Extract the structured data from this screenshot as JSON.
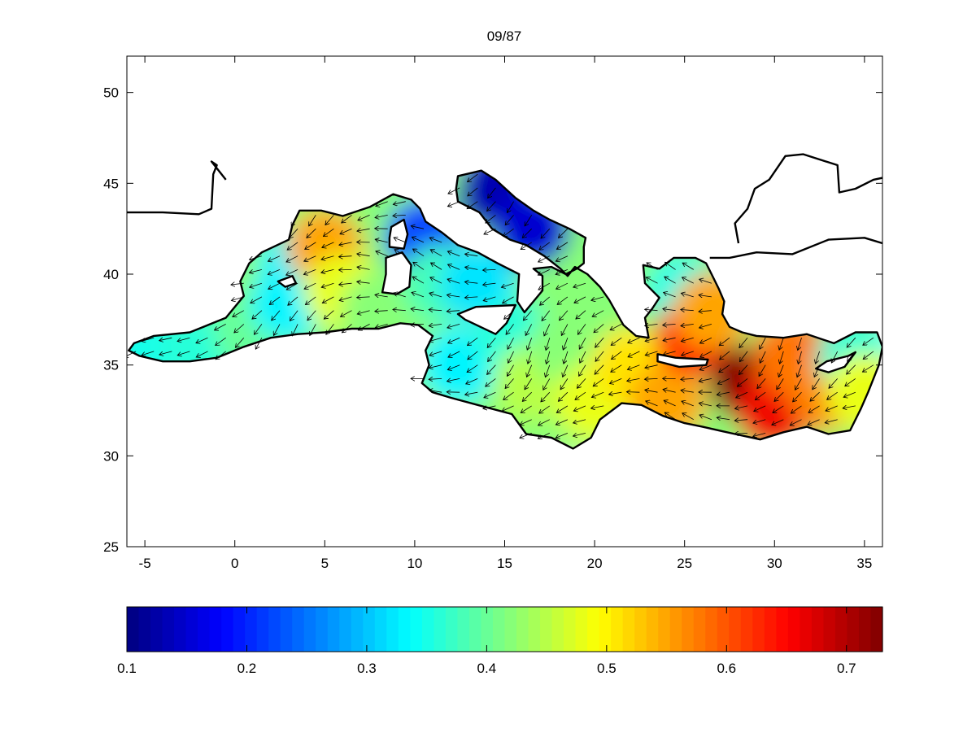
{
  "chart_data": {
    "type": "heatmap",
    "title": "09/87",
    "xlabel": "",
    "ylabel": "",
    "xlim": [
      -6,
      36
    ],
    "ylim": [
      25,
      52
    ],
    "x_ticks": [
      -5,
      0,
      5,
      10,
      15,
      20,
      25,
      30,
      35
    ],
    "y_ticks": [
      25,
      30,
      35,
      40,
      45,
      50
    ],
    "colorbar": {
      "colormap": "jet",
      "range": [
        0.1,
        0.73
      ],
      "ticks": [
        0.1,
        0.2,
        0.3,
        0.4,
        0.5,
        0.6,
        0.7
      ],
      "orientation": "horizontal",
      "placement": "bottom"
    },
    "overlay": "vector field arrows",
    "grid": false,
    "field_samples": [
      {
        "lon": -5.0,
        "lat": 35.8,
        "value": 0.35
      },
      {
        "lon": -2.0,
        "lat": 35.8,
        "value": 0.36
      },
      {
        "lon": 1.0,
        "lat": 36.8,
        "value": 0.4
      },
      {
        "lon": 3.0,
        "lat": 38.5,
        "value": 0.33
      },
      {
        "lon": 3.5,
        "lat": 40.5,
        "value": 0.33
      },
      {
        "lon": 5.0,
        "lat": 41.5,
        "value": 0.55
      },
      {
        "lon": 6.0,
        "lat": 39.0,
        "value": 0.48
      },
      {
        "lon": 8.0,
        "lat": 38.0,
        "value": 0.42
      },
      {
        "lon": 10.5,
        "lat": 42.0,
        "value": 0.22
      },
      {
        "lon": 11.5,
        "lat": 39.5,
        "value": 0.38
      },
      {
        "lon": 13.5,
        "lat": 39.5,
        "value": 0.32
      },
      {
        "lon": 14.5,
        "lat": 44.5,
        "value": 0.13
      },
      {
        "lon": 16.5,
        "lat": 42.5,
        "value": 0.15
      },
      {
        "lon": 12.5,
        "lat": 35.0,
        "value": 0.33
      },
      {
        "lon": 15.5,
        "lat": 36.5,
        "value": 0.36
      },
      {
        "lon": 16.5,
        "lat": 34.0,
        "value": 0.45
      },
      {
        "lon": 18.5,
        "lat": 36.0,
        "value": 0.42
      },
      {
        "lon": 20.0,
        "lat": 33.0,
        "value": 0.48
      },
      {
        "lon": 22.0,
        "lat": 35.0,
        "value": 0.51
      },
      {
        "lon": 24.0,
        "lat": 33.0,
        "value": 0.55
      },
      {
        "lon": 25.0,
        "lat": 39.0,
        "value": 0.35
      },
      {
        "lon": 25.5,
        "lat": 36.5,
        "value": 0.64
      },
      {
        "lon": 26.5,
        "lat": 38.0,
        "value": 0.55
      },
      {
        "lon": 28.5,
        "lat": 34.0,
        "value": 0.73
      },
      {
        "lon": 30.0,
        "lat": 32.5,
        "value": 0.66
      },
      {
        "lon": 31.0,
        "lat": 35.5,
        "value": 0.58
      },
      {
        "lon": 33.0,
        "lat": 33.5,
        "value": 0.57
      },
      {
        "lon": 34.5,
        "lat": 35.3,
        "value": 0.36
      },
      {
        "lon": 35.0,
        "lat": 33.5,
        "value": 0.48
      }
    ]
  }
}
